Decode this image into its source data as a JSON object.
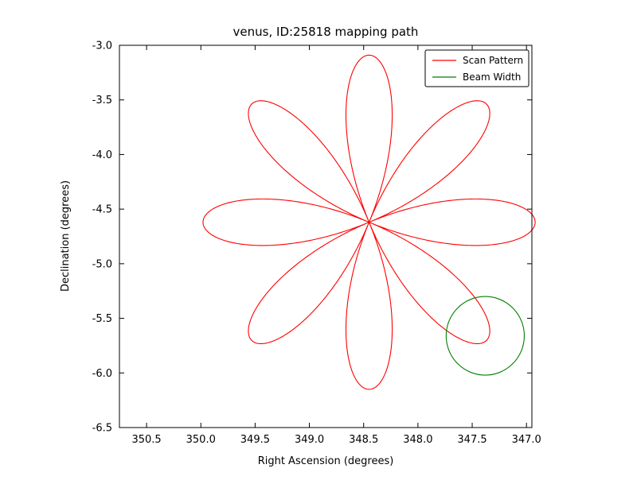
{
  "chart_data": {
    "type": "line",
    "title": "venus, ID:25818 mapping path",
    "xlabel": "Right Ascension (degrees)",
    "ylabel": "Declination (degrees)",
    "xlim": [
      350.75,
      346.95
    ],
    "ylim": [
      -6.5,
      -3.0
    ],
    "x_axis_inverted": true,
    "xticks": [
      350.5,
      350.0,
      349.5,
      349.0,
      348.5,
      348.0,
      347.5,
      347.0
    ],
    "yticks": [
      -3.0,
      -3.5,
      -4.0,
      -4.5,
      -5.0,
      -5.5,
      -6.0,
      -6.5
    ],
    "grid": false,
    "legend_position": "upper right",
    "legend_entries": [
      {
        "label": "Scan Pattern",
        "color": "#ff0000"
      },
      {
        "label": "Beam Width",
        "color": "#008000"
      }
    ],
    "series": [
      {
        "name": "Scan Pattern",
        "curve": "rose",
        "color": "#ff0000",
        "center_ra": 348.45,
        "center_dec": -4.62,
        "petal_length_deg": 1.53,
        "num_petals": 8
      },
      {
        "name": "Beam Width",
        "curve": "circle",
        "color": "#008000",
        "center_ra": 347.38,
        "center_dec": -5.66,
        "radius_deg": 0.36
      }
    ]
  }
}
